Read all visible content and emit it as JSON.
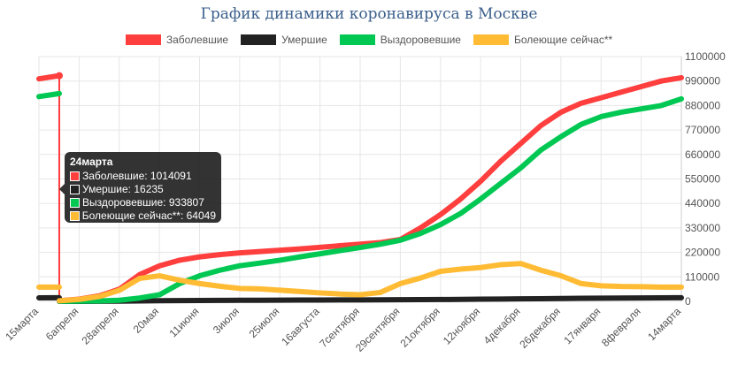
{
  "chart_data": {
    "type": "line",
    "title": "График динамики коронавируса в Москве",
    "x_ticks": [
      "15марта",
      "6апреля",
      "28апреля",
      "20мая",
      "11июня",
      "3июля",
      "25июля",
      "16августа",
      "7сентября",
      "29сентября",
      "21октября",
      "12ноября",
      "4декабря",
      "26декабря",
      "17января",
      "8февраля",
      "14марта"
    ],
    "y_ticks": [
      0,
      110000,
      220000,
      330000,
      440000,
      550000,
      660000,
      770000,
      880000,
      990000,
      1100000
    ],
    "ylim": [
      0,
      1100000
    ],
    "grid": true,
    "legend_position": "top",
    "series": [
      {
        "name": "Заболевшие",
        "color": "#ff3e3e",
        "values": [
          1000000,
          1014091,
          3000,
          10000,
          25000,
          55000,
          120000,
          160000,
          185000,
          200000,
          210000,
          218000,
          224000,
          230000,
          236000,
          243000,
          250000,
          257000,
          264000,
          278000,
          330000,
          390000,
          460000,
          540000,
          630000,
          710000,
          790000,
          850000,
          890000,
          915000,
          940000,
          965000,
          990000,
          1005000
        ]
      },
      {
        "name": "Умершие",
        "color": "#222222",
        "values": [
          16000,
          16235,
          30,
          200,
          500,
          1000,
          2000,
          3000,
          3700,
          4200,
          4600,
          4900,
          5200,
          5500,
          5800,
          6100,
          6400,
          6700,
          7000,
          7300,
          7700,
          8200,
          8900,
          9700,
          10500,
          11300,
          12100,
          12900,
          13700,
          14400,
          15000,
          15600,
          16000,
          16300
        ]
      },
      {
        "name": "Выздоровевшие",
        "color": "#00c853",
        "values": [
          920000,
          933807,
          500,
          1000,
          2000,
          5000,
          15000,
          30000,
          80000,
          115000,
          140000,
          160000,
          172000,
          185000,
          200000,
          214000,
          228000,
          242000,
          257000,
          275000,
          305000,
          345000,
          395000,
          460000,
          530000,
          600000,
          680000,
          740000,
          795000,
          830000,
          850000,
          865000,
          880000,
          910000
        ]
      },
      {
        "name": "Болеющие сейчас**",
        "color": "#ffbb33",
        "values": [
          64000,
          64049,
          2500,
          9000,
          22000,
          50000,
          103000,
          115000,
          95000,
          80000,
          68000,
          58000,
          56000,
          50000,
          44000,
          38000,
          33000,
          30000,
          40000,
          80000,
          105000,
          135000,
          145000,
          152000,
          165000,
          170000,
          140000,
          115000,
          80000,
          70000,
          67000,
          66000,
          64000,
          64000
        ]
      }
    ]
  },
  "tooltip": {
    "title": "24марта",
    "rows": [
      "Заболевшие: 1014091",
      "Умершие: 16235",
      "Выздоровевшие: 933807",
      "Болеющие сейчас**: 64049"
    ],
    "colors": [
      "#ff3e3e",
      "#222222",
      "#00c853",
      "#ffbb33"
    ]
  }
}
